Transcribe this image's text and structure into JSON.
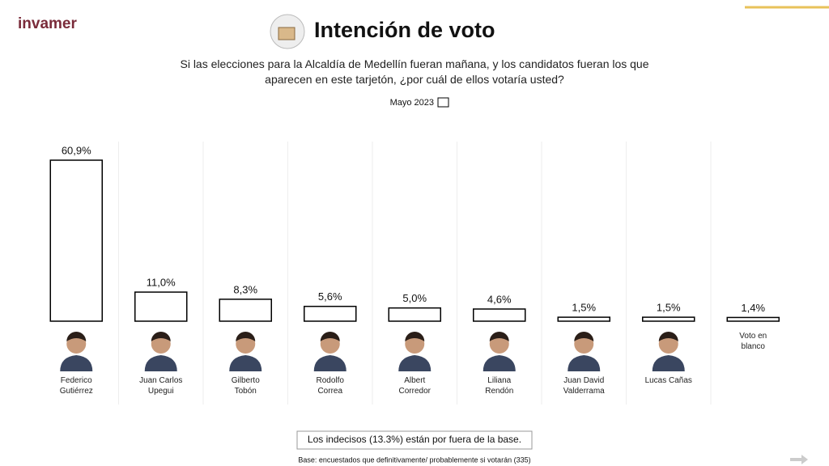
{
  "logo": "invamer",
  "chart_data": {
    "type": "bar",
    "title": "Intención de voto",
    "subtitle": "Si las elecciones para la Alcaldía de Medellín fueran mañana, y los candidatos fueran los que aparecen en este tarjetón, ¿por cuál de ellos votaría usted?",
    "legend_label": "Mayo 2023",
    "categories": [
      "Federico Gutiérrez",
      "Juan Carlos Upegui",
      "Gilberto Tobón",
      "Rodolfo Correa",
      "Albert Corredor",
      "Liliana Rendón",
      "Juan David Valderrama",
      "Lucas Cañas",
      "Voto en blanco"
    ],
    "values": [
      60.9,
      11.0,
      8.3,
      5.6,
      5.0,
      4.6,
      1.5,
      1.5,
      1.4
    ],
    "value_labels": [
      "60,9%",
      "11,0%",
      "8,3%",
      "5,6%",
      "5,0%",
      "4,6%",
      "1,5%",
      "1,5%",
      "1,4%"
    ],
    "color": "#ffffff",
    "edgecolor": "#000000",
    "note": "Los indecisos (13.3%) están por fuera de la base.",
    "footnote": "Base: encuestados que definitivamente/ probablemente si votarán (335)"
  }
}
